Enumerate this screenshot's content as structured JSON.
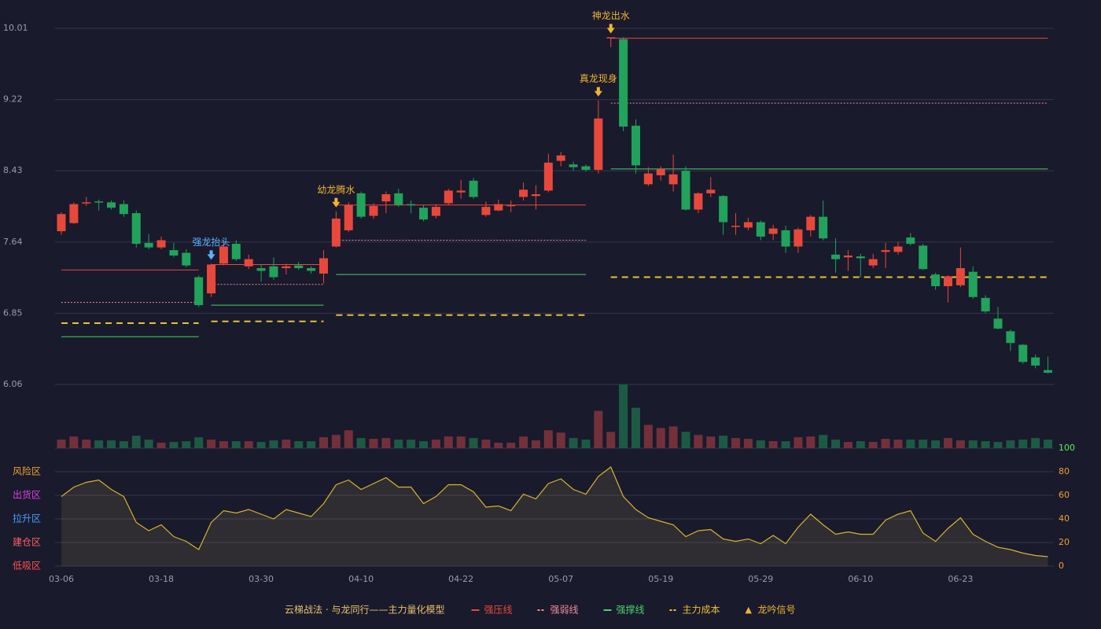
{
  "chart_data": {
    "type": "candlestick",
    "categories": [
      "03-06",
      null,
      null,
      null,
      null,
      null,
      null,
      null,
      "03-18",
      null,
      null,
      null,
      null,
      null,
      null,
      null,
      "03-30",
      null,
      null,
      null,
      null,
      null,
      null,
      null,
      "04-10",
      null,
      null,
      null,
      null,
      null,
      null,
      null,
      "04-22",
      null,
      null,
      null,
      null,
      null,
      null,
      null,
      "05-07",
      null,
      null,
      null,
      null,
      null,
      null,
      null,
      "05-19",
      null,
      null,
      null,
      null,
      null,
      null,
      null,
      "05-29",
      null,
      null,
      null,
      null,
      null,
      null,
      null,
      "06-10",
      null,
      null,
      null,
      null,
      null,
      null,
      null,
      "06-23",
      null,
      null,
      null,
      null,
      null,
      null,
      null
    ],
    "ylim": [
      6.06,
      10.01
    ],
    "yticks": [
      6.06,
      6.85,
      7.64,
      8.43,
      9.22,
      10.01
    ],
    "grid": true,
    "up_color": "#e8483b",
    "down_color": "#21a35c",
    "open": [
      7.76,
      7.85,
      8.07,
      8.09,
      8.08,
      8.06,
      7.96,
      7.63,
      7.58,
      7.55,
      7.52,
      7.25,
      7.07,
      7.4,
      7.62,
      7.37,
      7.35,
      7.37,
      7.35,
      7.38,
      7.35,
      7.29,
      7.59,
      7.77,
      8.18,
      7.93,
      8.09,
      8.18,
      8.06,
      8.02,
      7.93,
      8.07,
      8.19,
      8.32,
      7.94,
      7.99,
      8.04,
      8.14,
      8.15,
      8.21,
      8.54,
      8.5,
      8.48,
      8.44,
      9.9,
      9.89,
      8.93,
      8.28,
      8.38,
      8.28,
      8.43,
      8.0,
      8.18,
      8.15,
      7.81,
      7.8,
      7.86,
      7.73,
      7.77,
      7.59,
      7.77,
      7.92,
      7.5,
      7.47,
      7.48,
      7.38,
      7.53,
      7.53,
      7.69,
      7.6,
      7.28,
      7.15,
      7.16,
      7.31,
      7.02,
      6.79,
      6.65,
      6.5,
      6.36,
      6.22
    ],
    "high": [
      7.97,
      8.08,
      8.14,
      8.11,
      8.1,
      8.1,
      7.99,
      7.73,
      7.7,
      7.63,
      7.56,
      7.27,
      7.4,
      7.66,
      7.66,
      7.5,
      7.39,
      7.47,
      7.4,
      7.42,
      7.37,
      7.55,
      7.98,
      8.08,
      8.2,
      8.07,
      8.2,
      8.23,
      8.1,
      8.05,
      8.06,
      8.23,
      8.33,
      8.35,
      8.09,
      8.11,
      8.1,
      8.3,
      8.27,
      8.62,
      8.64,
      8.53,
      8.5,
      9.21,
      9.91,
      9.91,
      9.0,
      8.47,
      8.48,
      8.61,
      8.48,
      8.19,
      8.36,
      8.16,
      7.96,
      7.91,
      7.88,
      7.83,
      7.82,
      7.8,
      7.94,
      8.1,
      7.68,
      7.55,
      7.51,
      7.51,
      7.63,
      7.64,
      7.74,
      7.62,
      7.3,
      7.27,
      7.58,
      7.37,
      7.05,
      6.92,
      6.67,
      6.51,
      6.39,
      6.37
    ],
    "low": [
      7.72,
      7.84,
      8.04,
      7.99,
      8.0,
      7.92,
      7.58,
      7.56,
      7.56,
      7.47,
      7.36,
      6.92,
      7.03,
      7.38,
      7.43,
      7.34,
      7.2,
      7.22,
      7.28,
      7.33,
      7.29,
      7.18,
      7.58,
      7.75,
      7.9,
      7.9,
      7.96,
      8.03,
      7.96,
      7.87,
      7.9,
      8.05,
      8.12,
      8.12,
      7.92,
      7.98,
      7.97,
      8.1,
      8.0,
      8.19,
      8.48,
      8.43,
      8.42,
      8.4,
      9.8,
      8.87,
      8.4,
      8.26,
      8.32,
      8.2,
      7.99,
      7.96,
      8.14,
      7.72,
      7.72,
      7.77,
      7.66,
      7.66,
      7.52,
      7.52,
      7.7,
      7.66,
      7.3,
      7.32,
      7.25,
      7.35,
      7.35,
      7.5,
      7.6,
      7.33,
      7.11,
      6.97,
      7.14,
      7.01,
      6.85,
      6.67,
      6.43,
      6.29,
      6.24,
      6.18
    ],
    "close": [
      7.95,
      8.06,
      8.08,
      8.08,
      8.02,
      7.95,
      7.62,
      7.58,
      7.66,
      7.49,
      7.38,
      6.94,
      7.39,
      7.59,
      7.45,
      7.45,
      7.32,
      7.25,
      7.37,
      7.35,
      7.32,
      7.46,
      7.9,
      8.05,
      7.92,
      8.04,
      8.17,
      8.05,
      8.05,
      7.89,
      8.03,
      8.21,
      8.21,
      8.14,
      8.03,
      8.06,
      8.05,
      8.22,
      8.17,
      8.52,
      8.6,
      8.47,
      8.44,
      9.01,
      9.91,
      8.92,
      8.49,
      8.4,
      8.45,
      8.39,
      8.0,
      8.18,
      8.22,
      7.86,
      7.82,
      7.86,
      7.7,
      7.79,
      7.59,
      7.78,
      7.92,
      7.68,
      7.45,
      7.49,
      7.46,
      7.45,
      7.55,
      7.59,
      7.62,
      7.34,
      7.15,
      7.26,
      7.35,
      7.03,
      6.87,
      6.68,
      6.52,
      6.31,
      6.27,
      6.19
    ],
    "volume": [
      11,
      15,
      11,
      10,
      10,
      9,
      16,
      11,
      7,
      8,
      9,
      14,
      11,
      9,
      9,
      9,
      8,
      10,
      11,
      9,
      9,
      14,
      17,
      23,
      13,
      12,
      13,
      11,
      11,
      9,
      11,
      15,
      15,
      13,
      11,
      7,
      7,
      15,
      10,
      23,
      20,
      13,
      11,
      48,
      21,
      82,
      52,
      30,
      26,
      28,
      21,
      17,
      15,
      16,
      13,
      12,
      10,
      9,
      9,
      14,
      15,
      17,
      11,
      8,
      9,
      8,
      12,
      11,
      11,
      11,
      10,
      13,
      10,
      10,
      9,
      8,
      10,
      11,
      13,
      11
    ],
    "levels": [
      {
        "name": "强压线",
        "color": "#e8483b",
        "dash": "none",
        "width": 1,
        "values": [
          7.33,
          7.33,
          7.33,
          7.33,
          7.33,
          7.33,
          7.33,
          7.33,
          7.33,
          7.33,
          7.33,
          7.33,
          7.39,
          7.39,
          7.39,
          7.39,
          7.39,
          7.39,
          7.39,
          7.39,
          7.39,
          7.39,
          8.05,
          8.05,
          8.05,
          8.05,
          8.05,
          8.05,
          8.05,
          8.05,
          8.05,
          8.05,
          8.05,
          8.05,
          8.05,
          8.05,
          8.05,
          8.05,
          8.05,
          8.05,
          8.05,
          8.05,
          8.05,
          null,
          9.9,
          9.9,
          9.9,
          9.9,
          9.9,
          9.9,
          9.9,
          9.9,
          9.9,
          9.9,
          9.9,
          9.9,
          9.9,
          9.9,
          9.9,
          9.9,
          9.9,
          9.9,
          9.9,
          9.9,
          9.9,
          9.9,
          9.9,
          9.9,
          9.9,
          9.9,
          9.9,
          9.9,
          9.9,
          9.9,
          9.9,
          9.9,
          9.9,
          9.9,
          9.9,
          9.9
        ]
      },
      {
        "name": "强弱线",
        "color": "#f08a9a",
        "dash": "2,2",
        "width": 1,
        "values": [
          6.97,
          6.97,
          6.97,
          6.97,
          6.97,
          6.97,
          6.97,
          6.97,
          6.97,
          6.97,
          6.97,
          6.97,
          7.17,
          7.17,
          7.17,
          7.17,
          7.17,
          7.17,
          7.17,
          7.17,
          7.17,
          7.17,
          7.66,
          7.66,
          7.66,
          7.66,
          7.66,
          7.66,
          7.66,
          7.66,
          7.66,
          7.66,
          7.66,
          7.66,
          7.66,
          7.66,
          7.66,
          7.66,
          7.66,
          7.66,
          7.66,
          7.66,
          7.66,
          null,
          9.18,
          9.18,
          9.18,
          9.18,
          9.18,
          9.18,
          9.18,
          9.18,
          9.18,
          9.18,
          9.18,
          9.18,
          9.18,
          9.18,
          9.18,
          9.18,
          9.18,
          9.18,
          9.18,
          9.18,
          9.18,
          9.18,
          9.18,
          9.18,
          9.18,
          9.18,
          9.18,
          9.18,
          9.18,
          9.18,
          9.18,
          9.18,
          9.18,
          9.18,
          9.18,
          9.18
        ]
      },
      {
        "name": "强撑线",
        "color": "#4cd06a",
        "dash": "none",
        "width": 1,
        "values": [
          6.59,
          6.59,
          6.59,
          6.59,
          6.59,
          6.59,
          6.59,
          6.59,
          6.59,
          6.59,
          6.59,
          6.59,
          6.94,
          6.94,
          6.94,
          6.94,
          6.94,
          6.94,
          6.94,
          6.94,
          6.94,
          6.94,
          7.28,
          7.28,
          7.28,
          7.28,
          7.28,
          7.28,
          7.28,
          7.28,
          7.28,
          7.28,
          7.28,
          7.28,
          7.28,
          7.28,
          7.28,
          7.28,
          7.28,
          7.28,
          7.28,
          7.28,
          7.28,
          null,
          8.45,
          8.45,
          8.45,
          8.45,
          8.45,
          8.45,
          8.45,
          8.45,
          8.45,
          8.45,
          8.45,
          8.45,
          8.45,
          8.45,
          8.45,
          8.45,
          8.45,
          8.45,
          8.45,
          8.45,
          8.45,
          8.45,
          8.45,
          8.45,
          8.45,
          8.45,
          8.45,
          8.45,
          8.45,
          8.45,
          8.45,
          8.45,
          8.45,
          8.45,
          8.45,
          8.45
        ]
      },
      {
        "name": "主力成本",
        "color": "#e8c230",
        "dash": "8,6",
        "width": 2,
        "values": [
          6.74,
          6.74,
          6.74,
          6.74,
          6.74,
          6.74,
          6.74,
          6.74,
          6.74,
          6.74,
          6.74,
          6.74,
          6.76,
          6.76,
          6.76,
          6.76,
          6.76,
          6.76,
          6.76,
          6.76,
          6.76,
          6.76,
          6.83,
          6.83,
          6.83,
          6.83,
          6.83,
          6.83,
          6.83,
          6.83,
          6.83,
          6.83,
          6.83,
          6.83,
          6.83,
          6.83,
          6.83,
          6.83,
          6.83,
          6.83,
          6.83,
          6.83,
          6.83,
          null,
          7.25,
          7.25,
          7.25,
          7.25,
          7.25,
          7.25,
          7.25,
          7.25,
          7.25,
          7.25,
          7.25,
          7.25,
          7.25,
          7.25,
          7.25,
          7.25,
          7.25,
          7.25,
          7.25,
          7.25,
          7.25,
          7.25,
          7.25,
          7.25,
          7.25,
          7.25,
          7.25,
          7.25,
          7.25,
          7.25,
          7.25,
          7.25,
          7.25,
          7.25,
          7.25,
          7.25
        ]
      }
    ],
    "signal_legend": {
      "name": "龙吟信号",
      "marker": "▲",
      "color": "#f0b432"
    },
    "signals": [
      null,
      null,
      null,
      null,
      null,
      null,
      null,
      null,
      null,
      null,
      null,
      null,
      {
        "label": "强龙抬头",
        "color": "#5ab4ff"
      },
      null,
      null,
      null,
      null,
      null,
      null,
      null,
      null,
      null,
      {
        "label": "幼龙腾水",
        "color": "#f0b432"
      },
      null,
      null,
      null,
      null,
      null,
      null,
      null,
      null,
      null,
      null,
      null,
      null,
      null,
      null,
      null,
      null,
      null,
      null,
      null,
      null,
      {
        "label": "真龙现身",
        "color": "#f0b432"
      },
      {
        "label": "神龙出水",
        "color": "#f0b432"
      },
      null,
      null,
      null,
      null,
      null,
      null,
      null,
      null,
      null,
      null,
      null,
      null,
      null,
      null,
      null,
      null,
      null,
      null,
      null,
      null,
      null,
      null,
      null,
      null,
      null,
      null,
      null,
      null,
      null,
      null,
      null,
      null,
      null,
      null,
      null
    ],
    "indicator": {
      "values": [
        59,
        67,
        71,
        73,
        65,
        59,
        37,
        30,
        35,
        25,
        21,
        14,
        37,
        47,
        45,
        48,
        44,
        40,
        48,
        45,
        42,
        53,
        69,
        73,
        65,
        70,
        75,
        67,
        67,
        53,
        59,
        69,
        69,
        63,
        50,
        51,
        47,
        61,
        57,
        70,
        74,
        65,
        61,
        76,
        84,
        59,
        48,
        41,
        38,
        35,
        25,
        30,
        31,
        23,
        21,
        23,
        19,
        26,
        19,
        33,
        44,
        35,
        27,
        29,
        27,
        27,
        39,
        44,
        47,
        28,
        21,
        32,
        41,
        27,
        21,
        16,
        14,
        11,
        9,
        8
      ],
      "color": "#d8b42a",
      "ylim": [
        0,
        100
      ],
      "yticks": [
        0,
        20,
        40,
        60,
        80,
        100
      ],
      "ytick_colors": [
        "#f0a030",
        "#f0a030",
        "#f0a030",
        "#f0a030",
        "#f0a030",
        "#5cf05c"
      ],
      "zones": [
        {
          "value": 80,
          "label": "风险区",
          "color": "#f0a030"
        },
        {
          "value": 60,
          "label": "出货区",
          "color": "#e040e0"
        },
        {
          "value": 40,
          "label": "拉升区",
          "color": "#4a9cff"
        },
        {
          "value": 20,
          "label": "建仓区",
          "color": "#ff6060"
        },
        {
          "value": 0,
          "label": "低吸区",
          "color": "#ff5050"
        }
      ]
    },
    "legend": {
      "title": "云梯战法 · 与龙同行——主力量化模型",
      "title_color": "#e8c36a"
    }
  }
}
